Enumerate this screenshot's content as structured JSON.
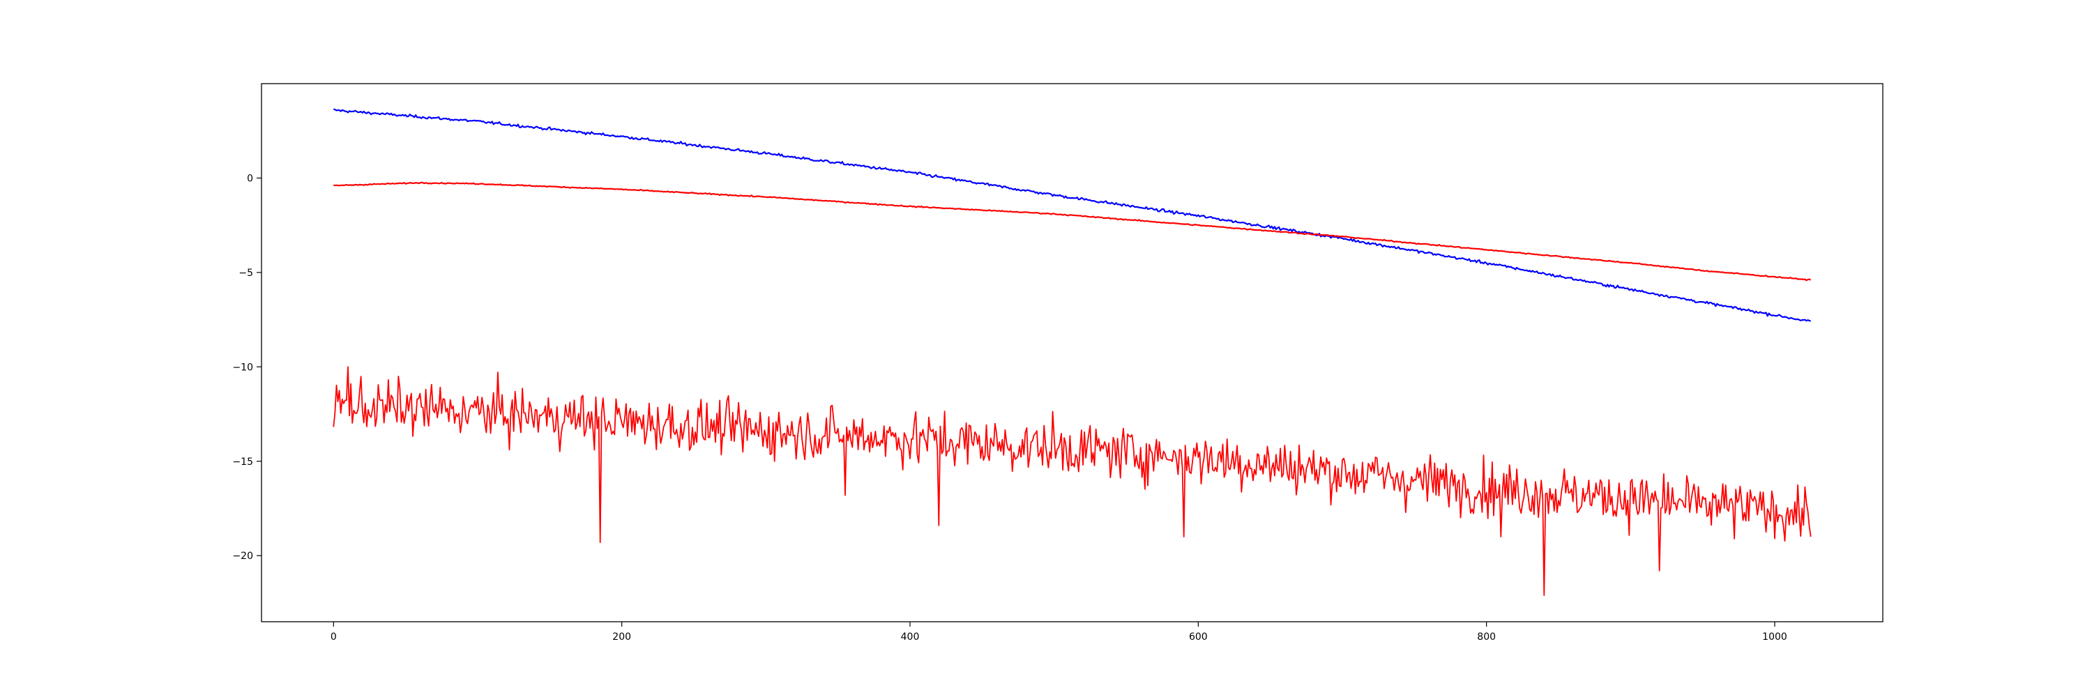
{
  "chart_data": {
    "type": "line",
    "title": "",
    "xlabel": "",
    "ylabel": "",
    "xlim": [
      -50,
      1075
    ],
    "ylim": [
      -23.5,
      5.0
    ],
    "x_ticks": [
      0,
      200,
      400,
      600,
      800,
      1000
    ],
    "y_ticks": [
      0,
      -5,
      -10,
      -15,
      -20
    ],
    "x_tick_labels": [
      "0",
      "200",
      "400",
      "600",
      "800",
      "1000"
    ],
    "y_tick_labels": [
      "0",
      "−5",
      "−10",
      "−15",
      "−20"
    ],
    "grid": false,
    "legend": "none",
    "x_range": [
      0,
      1025
    ],
    "series": [
      {
        "color": "#0000ff",
        "style": "smooth with fine jitter",
        "anchors": [
          [
            0,
            3.6
          ],
          [
            100,
            3.0
          ],
          [
            200,
            2.2
          ],
          [
            300,
            1.3
          ],
          [
            400,
            0.3
          ],
          [
            500,
            -0.9
          ],
          [
            600,
            -2.0
          ],
          [
            700,
            -3.2
          ],
          [
            800,
            -4.5
          ],
          [
            900,
            -5.9
          ],
          [
            1025,
            -7.6
          ]
        ],
        "noise": 0.05
      },
      {
        "color": "#ff0000",
        "style": "smooth",
        "anchors": [
          [
            0,
            -0.4
          ],
          [
            60,
            -0.25
          ],
          [
            100,
            -0.3
          ],
          [
            200,
            -0.6
          ],
          [
            300,
            -1.0
          ],
          [
            400,
            -1.5
          ],
          [
            500,
            -1.9
          ],
          [
            600,
            -2.5
          ],
          [
            700,
            -3.1
          ],
          [
            800,
            -3.8
          ],
          [
            900,
            -4.5
          ],
          [
            950,
            -4.9
          ],
          [
            1025,
            -5.4
          ]
        ],
        "noise": 0.02
      },
      {
        "color": "#ff0000",
        "style": "noisy",
        "anchors": [
          [
            0,
            -12.0
          ],
          [
            100,
            -12.4
          ],
          [
            200,
            -12.9
          ],
          [
            300,
            -13.4
          ],
          [
            400,
            -13.8
          ],
          [
            500,
            -14.3
          ],
          [
            600,
            -14.8
          ],
          [
            700,
            -15.6
          ],
          [
            800,
            -16.4
          ],
          [
            900,
            -17.0
          ],
          [
            1025,
            -17.8
          ]
        ],
        "noise": 1.2,
        "spikes": [
          [
            10,
            -10.0
          ],
          [
            185,
            -19.3
          ],
          [
            355,
            -16.8
          ],
          [
            420,
            -18.4
          ],
          [
            590,
            -19.0
          ],
          [
            810,
            -19.0
          ],
          [
            840,
            -22.1
          ],
          [
            920,
            -20.8
          ],
          [
            1025,
            -19.0
          ]
        ]
      }
    ]
  }
}
